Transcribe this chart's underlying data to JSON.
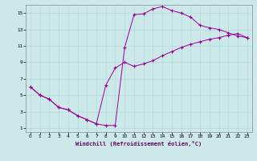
{
  "xlabel": "Windchill (Refroidissement éolien,°C)",
  "bg_color": "#cce8e8",
  "line_color": "#990099",
  "xlim": [
    -0.5,
    23.5
  ],
  "ylim": [
    0.5,
    16.0
  ],
  "xticks": [
    0,
    1,
    2,
    3,
    4,
    5,
    6,
    7,
    8,
    9,
    10,
    11,
    12,
    13,
    14,
    15,
    16,
    17,
    18,
    19,
    20,
    21,
    22,
    23
  ],
  "yticks": [
    1,
    3,
    5,
    7,
    9,
    11,
    13,
    15
  ],
  "line1_x": [
    0,
    1,
    2,
    3,
    4,
    5,
    6,
    7,
    8,
    9,
    10,
    11,
    12,
    13,
    14,
    15,
    16,
    17,
    18,
    19,
    20,
    21,
    22,
    23
  ],
  "line1_y": [
    6.0,
    5.0,
    4.5,
    3.5,
    3.2,
    2.5,
    2.0,
    1.5,
    1.3,
    1.3,
    10.8,
    14.8,
    14.9,
    15.5,
    15.8,
    15.3,
    15.0,
    14.5,
    13.5,
    13.2,
    13.0,
    12.6,
    12.2,
    12.0
  ],
  "line2_x": [
    0,
    1,
    2,
    3,
    4,
    5,
    6,
    7,
    8,
    9,
    10,
    11,
    12,
    13,
    14,
    15,
    16,
    17,
    18,
    19,
    20,
    21,
    22,
    23
  ],
  "line2_y": [
    6.0,
    5.0,
    4.5,
    3.5,
    3.2,
    2.5,
    2.0,
    1.5,
    6.2,
    8.3,
    9.0,
    8.5,
    8.8,
    9.2,
    9.8,
    10.3,
    10.8,
    11.2,
    11.5,
    11.8,
    12.0,
    12.3,
    12.5,
    12.0
  ]
}
